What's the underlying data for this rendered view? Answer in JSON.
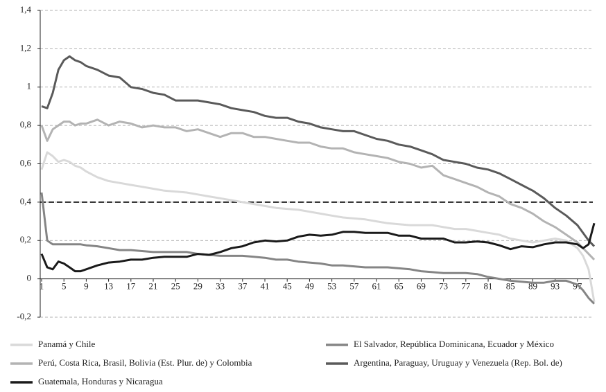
{
  "chart_data": {
    "type": "line",
    "x": [
      1,
      2,
      3,
      4,
      5,
      6,
      7,
      8,
      9,
      11,
      13,
      15,
      17,
      19,
      21,
      23,
      25,
      27,
      29,
      31,
      33,
      35,
      37,
      39,
      41,
      43,
      45,
      47,
      49,
      51,
      53,
      55,
      57,
      59,
      61,
      63,
      65,
      67,
      69,
      71,
      73,
      75,
      77,
      79,
      81,
      83,
      85,
      87,
      89,
      91,
      93,
      95,
      97,
      98,
      99,
      100
    ],
    "series": [
      {
        "name": "Panamá y Chile",
        "color": "#d9d9d9",
        "values": [
          0.57,
          0.66,
          0.64,
          0.61,
          0.62,
          0.61,
          0.59,
          0.58,
          0.56,
          0.53,
          0.51,
          0.5,
          0.49,
          0.48,
          0.47,
          0.46,
          0.455,
          0.45,
          0.44,
          0.43,
          0.42,
          0.41,
          0.4,
          0.39,
          0.38,
          0.37,
          0.365,
          0.36,
          0.35,
          0.34,
          0.33,
          0.32,
          0.315,
          0.31,
          0.3,
          0.29,
          0.285,
          0.28,
          0.28,
          0.28,
          0.27,
          0.26,
          0.26,
          0.25,
          0.24,
          0.23,
          0.21,
          0.2,
          0.19,
          0.2,
          0.21,
          0.2,
          0.16,
          0.12,
          0.05,
          -0.12
        ]
      },
      {
        "name": "El Salvador, República Dominicana, Ecuador y México",
        "color": "#858585",
        "values": [
          0.45,
          0.2,
          0.18,
          0.18,
          0.18,
          0.18,
          0.18,
          0.18,
          0.175,
          0.17,
          0.16,
          0.15,
          0.15,
          0.145,
          0.14,
          0.14,
          0.14,
          0.14,
          0.13,
          0.125,
          0.12,
          0.12,
          0.12,
          0.115,
          0.11,
          0.1,
          0.1,
          0.09,
          0.085,
          0.08,
          0.07,
          0.07,
          0.065,
          0.06,
          0.06,
          0.06,
          0.055,
          0.05,
          0.04,
          0.035,
          0.03,
          0.03,
          0.03,
          0.025,
          0.01,
          0,
          -0.01,
          -0.015,
          -0.02,
          -0.02,
          -0.01,
          -0.01,
          -0.03,
          -0.06,
          -0.1,
          -0.13
        ]
      },
      {
        "name": "Perú, Costa Rica, Brasil, Bolivia (Est. Plur. de) y Colombia",
        "color": "#b3b3b3",
        "values": [
          0.8,
          0.72,
          0.78,
          0.8,
          0.82,
          0.82,
          0.8,
          0.81,
          0.81,
          0.83,
          0.8,
          0.82,
          0.81,
          0.79,
          0.8,
          0.79,
          0.79,
          0.77,
          0.78,
          0.76,
          0.74,
          0.76,
          0.76,
          0.74,
          0.74,
          0.73,
          0.72,
          0.71,
          0.71,
          0.69,
          0.68,
          0.68,
          0.66,
          0.65,
          0.64,
          0.63,
          0.61,
          0.6,
          0.58,
          0.59,
          0.54,
          0.52,
          0.5,
          0.48,
          0.45,
          0.43,
          0.39,
          0.37,
          0.34,
          0.3,
          0.27,
          0.23,
          0.19,
          0.16,
          0.13,
          0.1
        ]
      },
      {
        "name": "Argentina, Paraguay, Uruguay y Venezuela (Rep. Bol. de)",
        "color": "#5a5a5a",
        "values": [
          0.9,
          0.89,
          0.97,
          1.09,
          1.14,
          1.16,
          1.14,
          1.13,
          1.11,
          1.09,
          1.06,
          1.05,
          1.0,
          0.99,
          0.97,
          0.96,
          0.93,
          0.93,
          0.93,
          0.92,
          0.91,
          0.89,
          0.88,
          0.87,
          0.85,
          0.84,
          0.84,
          0.82,
          0.81,
          0.79,
          0.78,
          0.77,
          0.77,
          0.75,
          0.73,
          0.72,
          0.7,
          0.69,
          0.67,
          0.65,
          0.62,
          0.61,
          0.6,
          0.58,
          0.57,
          0.55,
          0.52,
          0.49,
          0.46,
          0.42,
          0.37,
          0.33,
          0.28,
          0.24,
          0.2,
          0.17
        ]
      },
      {
        "name": "Guatemala, Honduras y Nicaragua",
        "color": "#1a1a1a",
        "values": [
          0.13,
          0.06,
          0.05,
          0.09,
          0.08,
          0.06,
          0.04,
          0.04,
          0.05,
          0.07,
          0.085,
          0.09,
          0.1,
          0.1,
          0.11,
          0.115,
          0.115,
          0.115,
          0.13,
          0.125,
          0.14,
          0.16,
          0.17,
          0.19,
          0.2,
          0.195,
          0.2,
          0.22,
          0.23,
          0.225,
          0.23,
          0.245,
          0.245,
          0.24,
          0.24,
          0.24,
          0.225,
          0.225,
          0.21,
          0.21,
          0.21,
          0.19,
          0.19,
          0.195,
          0.19,
          0.175,
          0.155,
          0.17,
          0.165,
          0.18,
          0.19,
          0.19,
          0.18,
          0.16,
          0.18,
          0.29
        ]
      }
    ],
    "xlim": [
      1,
      100
    ],
    "xticks": [
      1,
      5,
      9,
      13,
      17,
      21,
      25,
      29,
      33,
      37,
      41,
      45,
      49,
      53,
      57,
      61,
      65,
      69,
      73,
      77,
      81,
      85,
      89,
      93,
      97
    ],
    "ylim": [
      -0.2,
      1.4
    ],
    "yticks": [
      {
        "value": -0.2,
        "label": "-0,2"
      },
      0,
      {
        "value": 0.2,
        "label": "0,2"
      },
      {
        "value": 0.4,
        "label": "0,4"
      },
      {
        "value": 0.6,
        "label": "0,6"
      },
      {
        "value": 0.8,
        "label": "0,8"
      },
      1,
      {
        "value": 1.2,
        "label": "1,2"
      },
      {
        "value": 1.4,
        "label": "1,4"
      }
    ],
    "reference_line": 0.4,
    "grid": true
  }
}
